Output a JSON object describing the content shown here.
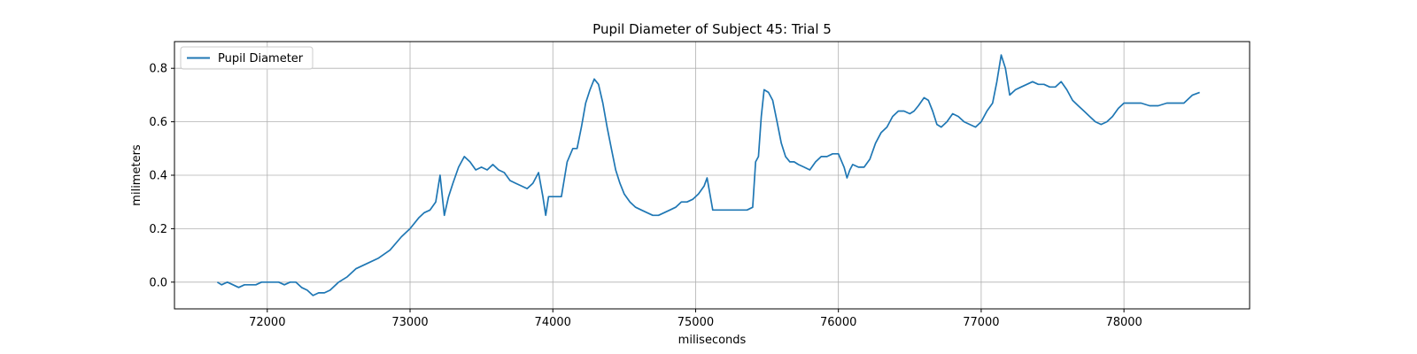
{
  "chart_data": {
    "type": "line",
    "title": "Pupil Diameter of Subject 45: Trial 5",
    "xlabel": "miliseconds",
    "ylabel": "milimeters",
    "xlim": [
      71350,
      78880
    ],
    "ylim": [
      -0.1,
      0.9
    ],
    "xticks": [
      72000,
      73000,
      74000,
      75000,
      76000,
      77000,
      78000
    ],
    "yticks": [
      0.0,
      0.2,
      0.4,
      0.6,
      0.8
    ],
    "xtick_labels": [
      "72000",
      "73000",
      "74000",
      "75000",
      "76000",
      "77000",
      "78000"
    ],
    "ytick_labels": [
      "0.0",
      "0.2",
      "0.4",
      "0.6",
      "0.8"
    ],
    "grid": true,
    "legend_position": "top-left",
    "series": [
      {
        "name": "Pupil Diameter",
        "color": "#1f77b4",
        "x": [
          71650,
          71680,
          71720,
          71760,
          71800,
          71840,
          71880,
          71920,
          71960,
          72000,
          72040,
          72080,
          72120,
          72160,
          72200,
          72240,
          72280,
          72320,
          72360,
          72400,
          72440,
          72500,
          72560,
          72620,
          72700,
          72780,
          72860,
          72940,
          73000,
          73060,
          73100,
          73140,
          73180,
          73210,
          73240,
          73270,
          73300,
          73340,
          73380,
          73420,
          73460,
          73500,
          73540,
          73580,
          73620,
          73660,
          73700,
          73740,
          73780,
          73820,
          73860,
          73900,
          73930,
          73950,
          73970,
          74000,
          74060,
          74100,
          74140,
          74170,
          74200,
          74230,
          74260,
          74290,
          74320,
          74350,
          74380,
          74410,
          74440,
          74470,
          74500,
          74540,
          74580,
          74620,
          74660,
          74700,
          74740,
          74780,
          74820,
          74860,
          74900,
          74940,
          74980,
          75020,
          75060,
          75080,
          75100,
          75120,
          75160,
          75220,
          75300,
          75360,
          75400,
          75420,
          75440,
          75460,
          75480,
          75510,
          75540,
          75570,
          75600,
          75630,
          75660,
          75690,
          75720,
          75760,
          75800,
          75840,
          75880,
          75920,
          75960,
          76000,
          76040,
          76060,
          76080,
          76100,
          76140,
          76180,
          76220,
          76260,
          76300,
          76340,
          76380,
          76420,
          76460,
          76500,
          76530,
          76560,
          76600,
          76630,
          76660,
          76690,
          76720,
          76760,
          76800,
          76840,
          76880,
          76920,
          76960,
          77000,
          77040,
          77080,
          77110,
          77140,
          77170,
          77200,
          77240,
          77280,
          77320,
          77360,
          77400,
          77440,
          77480,
          77520,
          77560,
          77600,
          77640,
          77680,
          77720,
          77760,
          77800,
          77840,
          77880,
          77920,
          77960,
          78000,
          78060,
          78120,
          78180,
          78240,
          78300,
          78360,
          78420,
          78480,
          78530
        ],
        "y": [
          0.0,
          -0.01,
          0.0,
          -0.01,
          -0.02,
          -0.01,
          -0.01,
          -0.01,
          0.0,
          0.0,
          0.0,
          0.0,
          -0.01,
          0.0,
          0.0,
          -0.02,
          -0.03,
          -0.05,
          -0.04,
          -0.04,
          -0.03,
          0.0,
          0.02,
          0.05,
          0.07,
          0.09,
          0.12,
          0.17,
          0.2,
          0.24,
          0.26,
          0.27,
          0.3,
          0.4,
          0.25,
          0.32,
          0.37,
          0.43,
          0.47,
          0.45,
          0.42,
          0.43,
          0.42,
          0.44,
          0.42,
          0.41,
          0.38,
          0.37,
          0.36,
          0.35,
          0.37,
          0.41,
          0.32,
          0.25,
          0.32,
          0.32,
          0.32,
          0.45,
          0.5,
          0.5,
          0.58,
          0.67,
          0.72,
          0.76,
          0.74,
          0.67,
          0.58,
          0.5,
          0.42,
          0.37,
          0.33,
          0.3,
          0.28,
          0.27,
          0.26,
          0.25,
          0.25,
          0.26,
          0.27,
          0.28,
          0.3,
          0.3,
          0.31,
          0.33,
          0.36,
          0.39,
          0.33,
          0.27,
          0.27,
          0.27,
          0.27,
          0.27,
          0.28,
          0.45,
          0.47,
          0.62,
          0.72,
          0.71,
          0.68,
          0.6,
          0.52,
          0.47,
          0.45,
          0.45,
          0.44,
          0.43,
          0.42,
          0.45,
          0.47,
          0.47,
          0.48,
          0.48,
          0.43,
          0.39,
          0.42,
          0.44,
          0.43,
          0.43,
          0.46,
          0.52,
          0.56,
          0.58,
          0.62,
          0.64,
          0.64,
          0.63,
          0.64,
          0.66,
          0.69,
          0.68,
          0.64,
          0.59,
          0.58,
          0.6,
          0.63,
          0.62,
          0.6,
          0.59,
          0.58,
          0.6,
          0.64,
          0.67,
          0.75,
          0.85,
          0.8,
          0.7,
          0.72,
          0.73,
          0.74,
          0.75,
          0.74,
          0.74,
          0.73,
          0.73,
          0.75,
          0.72,
          0.68,
          0.66,
          0.64,
          0.62,
          0.6,
          0.59,
          0.6,
          0.62,
          0.65,
          0.67,
          0.67,
          0.67,
          0.66,
          0.66,
          0.67,
          0.67,
          0.67,
          0.7,
          0.71
        ]
      }
    ]
  }
}
